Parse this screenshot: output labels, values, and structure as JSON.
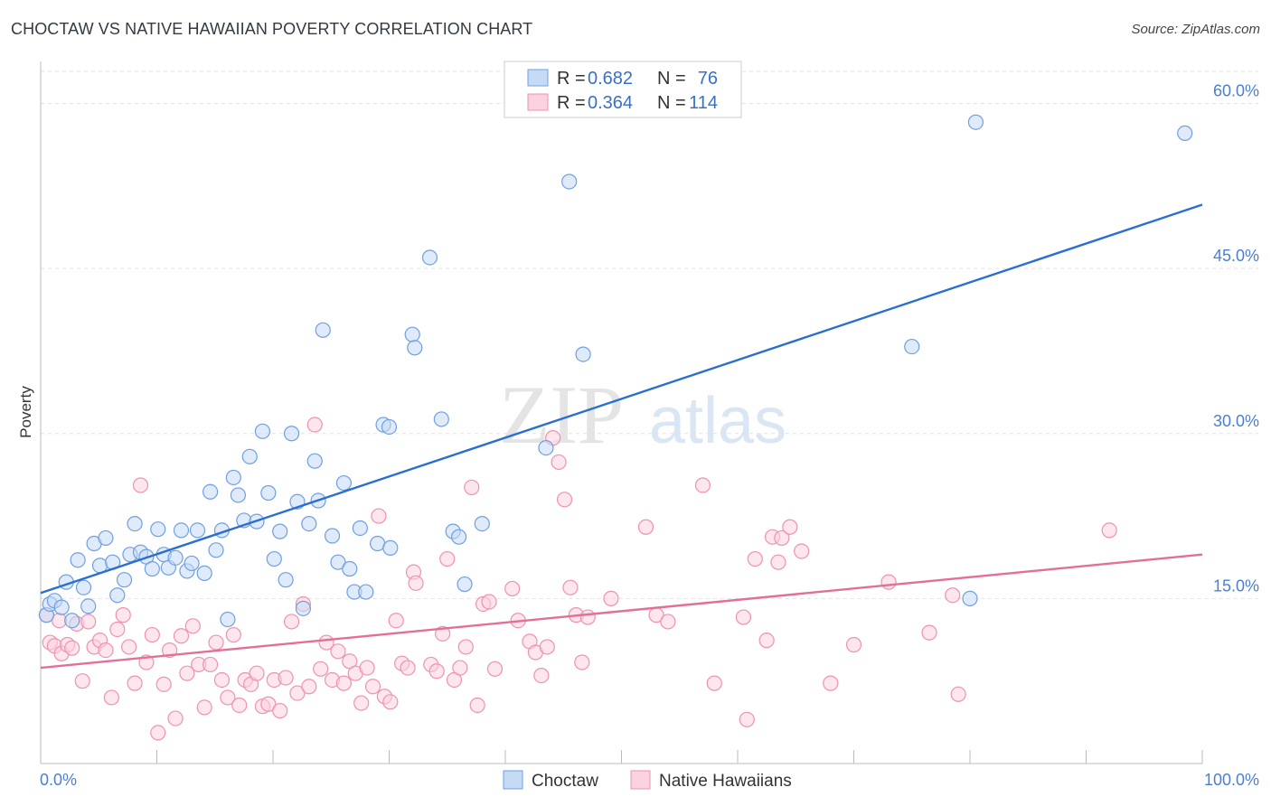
{
  "header": {
    "title": "CHOCTAW VS NATIVE HAWAIIAN POVERTY CORRELATION CHART",
    "source": "Source: ZipAtlas.com"
  },
  "watermark": {
    "zip": "ZIP",
    "atlas": "atlas"
  },
  "chart_data": {
    "type": "scatter",
    "title": "CHOCTAW VS NATIVE HAWAIIAN POVERTY CORRELATION CHART",
    "ylabel": "Poverty",
    "xlabel": "",
    "xlim": [
      0,
      100
    ],
    "ylim": [
      0,
      63
    ],
    "x_tick_labels": {
      "left": "0.0%",
      "right": "100.0%"
    },
    "y_ticks": [
      {
        "value": 15,
        "label": "15.0%"
      },
      {
        "value": 30,
        "label": "30.0%"
      },
      {
        "value": 45,
        "label": "45.0%"
      },
      {
        "value": 60,
        "label": "60.0%"
      }
    ],
    "legend_placement": "top-center",
    "legend": [
      {
        "r_label": "R =",
        "r_value": "0.682",
        "n_label": "N =",
        "n_value": "76"
      },
      {
        "r_label": "R =",
        "r_value": "0.364",
        "n_label": "N =",
        "n_value": "114"
      }
    ],
    "series": [
      {
        "name": "Choctaw",
        "color": "#6f9fe0",
        "fill": "#c5daf5",
        "line_color": "#2a6fd0",
        "trend": {
          "x0": 0,
          "y0": 15.5,
          "x1": 100,
          "y1": 50.8
        },
        "points": [
          [
            0.5,
            13.5
          ],
          [
            0.8,
            14.5
          ],
          [
            1.2,
            14.8
          ],
          [
            1.8,
            14.2
          ],
          [
            2.2,
            16.5
          ],
          [
            2.7,
            13.0
          ],
          [
            3.2,
            18.5
          ],
          [
            3.7,
            16.0
          ],
          [
            4.1,
            14.3
          ],
          [
            4.6,
            20.0
          ],
          [
            5.1,
            18.0
          ],
          [
            5.6,
            20.5
          ],
          [
            6.2,
            18.3
          ],
          [
            6.6,
            15.3
          ],
          [
            7.2,
            16.7
          ],
          [
            7.7,
            19.0
          ],
          [
            8.1,
            21.8
          ],
          [
            8.6,
            19.2
          ],
          [
            9.1,
            18.8
          ],
          [
            9.6,
            17.7
          ],
          [
            10.1,
            21.3
          ],
          [
            10.6,
            19.0
          ],
          [
            11.0,
            17.8
          ],
          [
            11.6,
            18.7
          ],
          [
            12.1,
            21.2
          ],
          [
            12.6,
            17.5
          ],
          [
            13.0,
            18.2
          ],
          [
            13.5,
            21.2
          ],
          [
            14.1,
            17.3
          ],
          [
            14.6,
            24.7
          ],
          [
            15.1,
            19.4
          ],
          [
            15.6,
            21.2
          ],
          [
            16.1,
            13.1
          ],
          [
            16.6,
            26.0
          ],
          [
            17.0,
            24.4
          ],
          [
            17.5,
            22.1
          ],
          [
            18.0,
            27.9
          ],
          [
            18.6,
            22.0
          ],
          [
            19.1,
            30.2
          ],
          [
            19.6,
            24.6
          ],
          [
            20.1,
            18.6
          ],
          [
            20.6,
            21.1
          ],
          [
            21.1,
            16.7
          ],
          [
            21.6,
            30.0
          ],
          [
            22.1,
            23.8
          ],
          [
            22.6,
            14.1
          ],
          [
            23.1,
            21.8
          ],
          [
            23.6,
            27.5
          ],
          [
            23.9,
            23.9
          ],
          [
            24.3,
            39.4
          ],
          [
            25.1,
            20.7
          ],
          [
            25.6,
            18.3
          ],
          [
            26.1,
            25.5
          ],
          [
            26.6,
            17.7
          ],
          [
            27.0,
            15.6
          ],
          [
            27.5,
            21.4
          ],
          [
            28.0,
            15.6
          ],
          [
            29.0,
            20.0
          ],
          [
            29.5,
            30.8
          ],
          [
            30.0,
            30.6
          ],
          [
            30.1,
            19.6
          ],
          [
            32.0,
            39.0
          ],
          [
            32.2,
            37.8
          ],
          [
            33.5,
            46.0
          ],
          [
            34.5,
            31.3
          ],
          [
            35.5,
            21.1
          ],
          [
            36.0,
            20.6
          ],
          [
            36.5,
            16.3
          ],
          [
            38.0,
            21.8
          ],
          [
            43.5,
            28.7
          ],
          [
            45.5,
            52.9
          ],
          [
            46.7,
            37.2
          ],
          [
            75.0,
            37.9
          ],
          [
            80.0,
            15.0
          ],
          [
            80.5,
            58.3
          ],
          [
            98.5,
            57.3
          ]
        ]
      },
      {
        "name": "Native Hawaiians",
        "color": "#ee92b0",
        "fill": "#fbd2df",
        "line_color": "#e36f98",
        "trend": {
          "x0": 0,
          "y0": 8.7,
          "x1": 100,
          "y1": 19.0
        },
        "points": [
          [
            0.5,
            13.5
          ],
          [
            0.8,
            11.0
          ],
          [
            1.2,
            10.7
          ],
          [
            1.6,
            13.0
          ],
          [
            1.8,
            10.0
          ],
          [
            2.3,
            10.8
          ],
          [
            2.7,
            10.5
          ],
          [
            3.1,
            12.7
          ],
          [
            3.6,
            7.5
          ],
          [
            4.1,
            12.9
          ],
          [
            4.6,
            10.6
          ],
          [
            5.1,
            11.2
          ],
          [
            5.6,
            10.3
          ],
          [
            6.1,
            6.0
          ],
          [
            6.6,
            12.2
          ],
          [
            7.1,
            13.5
          ],
          [
            7.6,
            10.6
          ],
          [
            8.1,
            7.3
          ],
          [
            8.6,
            25.3
          ],
          [
            9.1,
            9.2
          ],
          [
            9.6,
            11.7
          ],
          [
            10.1,
            2.8
          ],
          [
            10.6,
            7.2
          ],
          [
            11.1,
            10.3
          ],
          [
            11.6,
            4.1
          ],
          [
            12.1,
            11.6
          ],
          [
            12.6,
            8.2
          ],
          [
            13.1,
            12.5
          ],
          [
            13.6,
            9.0
          ],
          [
            14.1,
            5.1
          ],
          [
            14.6,
            9.0
          ],
          [
            15.1,
            11.0
          ],
          [
            15.6,
            7.6
          ],
          [
            16.1,
            6.0
          ],
          [
            16.6,
            11.7
          ],
          [
            17.1,
            5.3
          ],
          [
            17.6,
            7.6
          ],
          [
            18.1,
            7.2
          ],
          [
            18.6,
            8.2
          ],
          [
            19.1,
            5.2
          ],
          [
            19.6,
            5.4
          ],
          [
            20.1,
            7.6
          ],
          [
            20.6,
            4.8
          ],
          [
            21.1,
            7.8
          ],
          [
            21.6,
            12.9
          ],
          [
            22.1,
            6.4
          ],
          [
            22.6,
            14.5
          ],
          [
            23.1,
            7.0
          ],
          [
            23.6,
            30.8
          ],
          [
            24.1,
            8.6
          ],
          [
            24.6,
            11.0
          ],
          [
            25.1,
            7.6
          ],
          [
            25.6,
            10.2
          ],
          [
            26.1,
            7.3
          ],
          [
            26.6,
            9.3
          ],
          [
            27.1,
            8.2
          ],
          [
            27.6,
            5.5
          ],
          [
            28.1,
            8.7
          ],
          [
            28.6,
            7.0
          ],
          [
            29.1,
            22.5
          ],
          [
            29.6,
            6.1
          ],
          [
            30.1,
            5.6
          ],
          [
            30.6,
            13.0
          ],
          [
            31.1,
            9.1
          ],
          [
            31.6,
            8.7
          ],
          [
            32.1,
            17.4
          ],
          [
            32.3,
            16.4
          ],
          [
            33.6,
            9.0
          ],
          [
            34.1,
            8.4
          ],
          [
            34.6,
            11.8
          ],
          [
            35.0,
            18.6
          ],
          [
            35.6,
            7.6
          ],
          [
            36.1,
            8.7
          ],
          [
            36.6,
            10.6
          ],
          [
            37.1,
            25.1
          ],
          [
            37.6,
            5.3
          ],
          [
            38.1,
            14.5
          ],
          [
            38.6,
            14.7
          ],
          [
            39.1,
            8.6
          ],
          [
            40.6,
            15.9
          ],
          [
            41.1,
            13.0
          ],
          [
            42.1,
            11.1
          ],
          [
            42.6,
            10.1
          ],
          [
            43.1,
            8.0
          ],
          [
            43.6,
            10.6
          ],
          [
            44.1,
            29.6
          ],
          [
            44.6,
            27.4
          ],
          [
            45.1,
            24.0
          ],
          [
            45.6,
            16.0
          ],
          [
            46.1,
            13.5
          ],
          [
            46.6,
            9.2
          ],
          [
            47.1,
            13.3
          ],
          [
            49.1,
            15.0
          ],
          [
            52.1,
            21.5
          ],
          [
            53.0,
            13.5
          ],
          [
            54.0,
            12.9
          ],
          [
            57.0,
            25.3
          ],
          [
            58.0,
            7.3
          ],
          [
            60.5,
            13.3
          ],
          [
            60.8,
            4.0
          ],
          [
            61.5,
            18.6
          ],
          [
            62.5,
            11.2
          ],
          [
            63.0,
            20.6
          ],
          [
            63.5,
            18.3
          ],
          [
            63.8,
            20.5
          ],
          [
            64.5,
            21.5
          ],
          [
            65.5,
            19.3
          ],
          [
            68.0,
            7.3
          ],
          [
            70.0,
            10.8
          ],
          [
            73.0,
            16.5
          ],
          [
            76.5,
            11.9
          ],
          [
            78.5,
            15.3
          ],
          [
            79.0,
            6.3
          ],
          [
            92.0,
            21.2
          ]
        ]
      }
    ]
  },
  "bottom_legend": [
    {
      "label": "Choctaw"
    },
    {
      "label": "Native Hawaiians"
    }
  ]
}
